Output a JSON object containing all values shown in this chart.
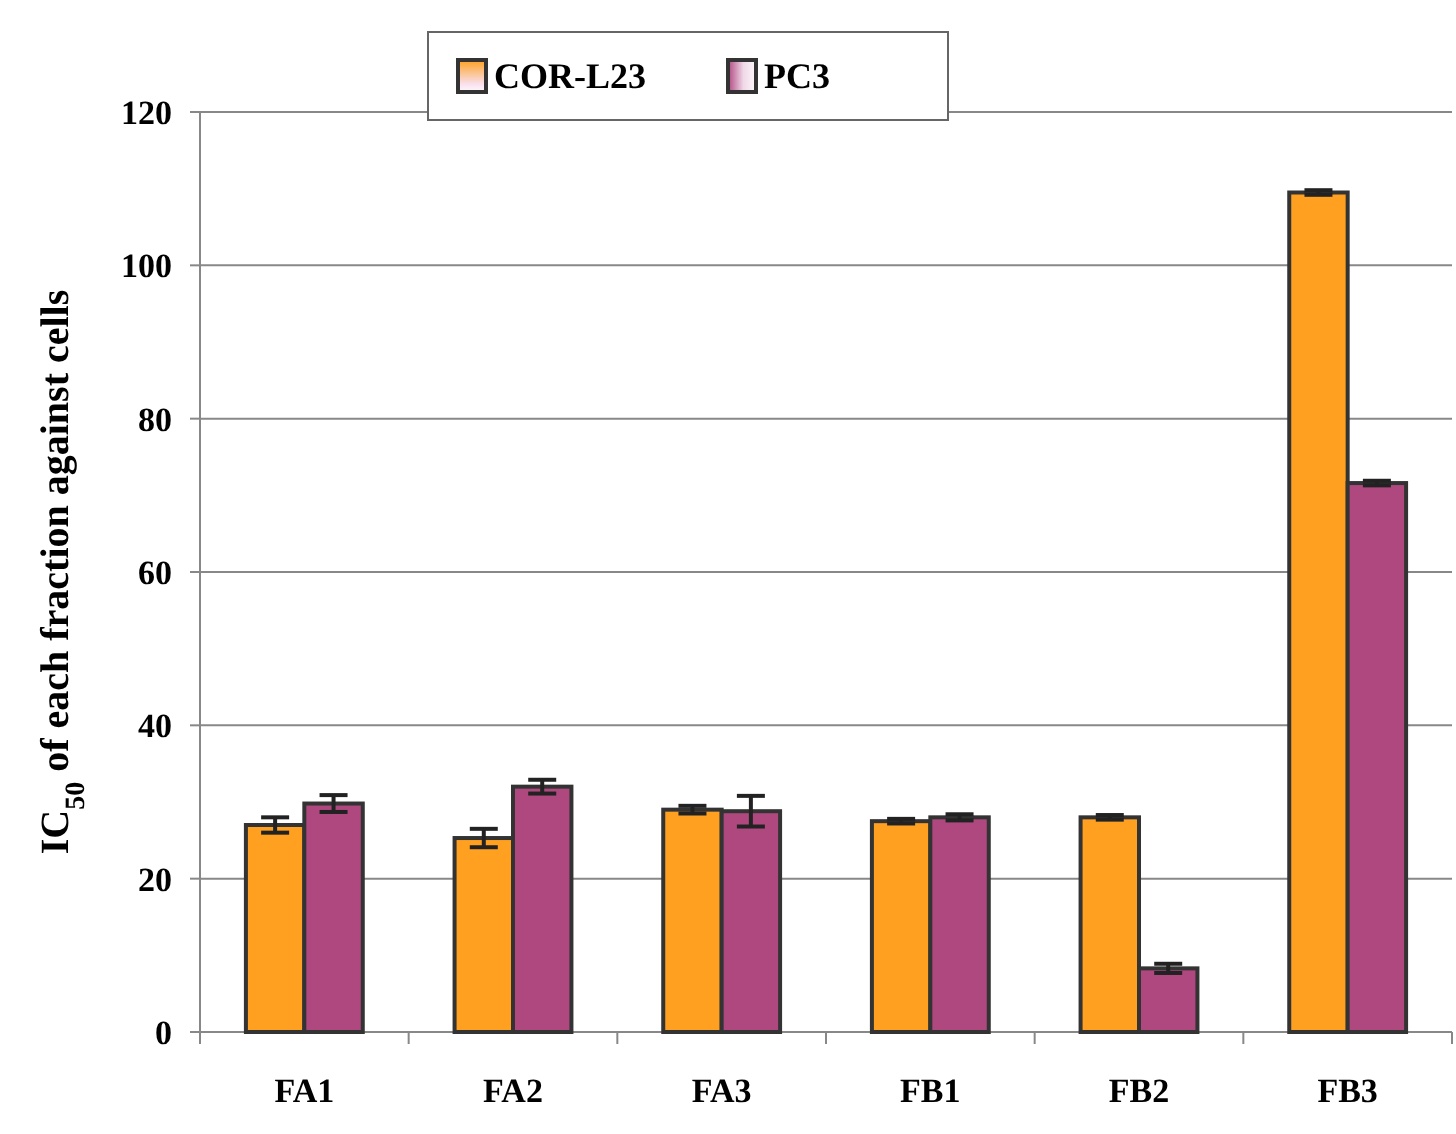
{
  "chart_data": {
    "type": "bar",
    "ylabel": "IC$_{50}$ of each fraction against cells",
    "categories": [
      "FA1",
      "FA2",
      "FA3",
      "FB1",
      "FB2",
      "FB3"
    ],
    "series": [
      {
        "name": "COR-L23",
        "color": "#ffa020",
        "values": [
          27,
          25.3,
          29,
          27.5,
          28,
          109.5
        ],
        "errors": [
          1,
          1.2,
          0.5,
          0.3,
          0.3,
          0.3
        ]
      },
      {
        "name": "PC3",
        "color": "#b04880",
        "values": [
          29.8,
          32,
          28.8,
          28,
          8.3,
          71.6
        ],
        "errors": [
          1.1,
          0.9,
          2,
          0.4,
          0.6,
          0.3
        ]
      }
    ],
    "ylim": [
      0,
      120
    ],
    "yticks": [
      0,
      20,
      40,
      60,
      80,
      100,
      120
    ],
    "grid": "y",
    "legend": "top"
  }
}
